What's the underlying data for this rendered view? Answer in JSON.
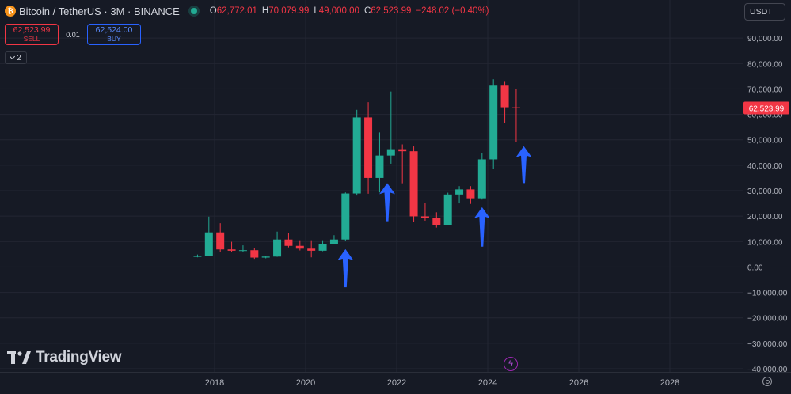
{
  "header": {
    "symbol": "Bitcoin / TetherUS · 3M · BINANCE",
    "coin_icon": "bitcoin-icon",
    "ohlc": [
      {
        "key": "O",
        "value": "62,772.01"
      },
      {
        "key": "H",
        "value": "70,079.99"
      },
      {
        "key": "L",
        "value": "49,000.00"
      },
      {
        "key": "C",
        "value": "62,523.99"
      }
    ],
    "change": "−248.02 (−0.40%)"
  },
  "trade": {
    "sell_price": "62,523.99",
    "sell_label": "SELL",
    "spread": "0.01",
    "buy_price": "62,524.00",
    "buy_label": "BUY"
  },
  "indicators_toggle": "2",
  "currency": "USDT",
  "branding": "TradingView",
  "colors": {
    "up": "#22ab94",
    "down": "#f23645",
    "arrow": "#2962ff",
    "background": "#161a25",
    "grid": "#232633",
    "price_line": "#f23645"
  },
  "chart_data": {
    "type": "candlestick",
    "title": "",
    "xlabel": "",
    "ylabel": "",
    "ylim": [
      -40000,
      100000
    ],
    "x_ticks": [
      "2018",
      "2020",
      "2022",
      "2024",
      "2026",
      "2028"
    ],
    "y_ticks": [
      "90,000.00",
      "80,000.00",
      "70,000.00",
      "60,000.00",
      "50,000.00",
      "40,000.00",
      "30,000.00",
      "20,000.00",
      "10,000.00",
      "0.00",
      "−10,000.00",
      "−20,000.00",
      "−30,000.00",
      "−40,000.00"
    ],
    "grid": true,
    "last_price": 62523.99,
    "last_price_label": "62,523.99",
    "candles": [
      {
        "t": "2017-07",
        "o": 4200,
        "h": 4900,
        "l": 3800,
        "c": 4300
      },
      {
        "t": "2017-10",
        "o": 4300,
        "h": 19800,
        "l": 4200,
        "c": 13600
      },
      {
        "t": "2018-01",
        "o": 13600,
        "h": 17200,
        "l": 6000,
        "c": 6900
      },
      {
        "t": "2018-04",
        "o": 6900,
        "h": 9900,
        "l": 5800,
        "c": 6400
      },
      {
        "t": "2018-07",
        "o": 6400,
        "h": 8500,
        "l": 5900,
        "c": 6600
      },
      {
        "t": "2018-10",
        "o": 6600,
        "h": 7500,
        "l": 3200,
        "c": 3700
      },
      {
        "t": "2019-01",
        "o": 3700,
        "h": 4300,
        "l": 3400,
        "c": 4100
      },
      {
        "t": "2019-04",
        "o": 4100,
        "h": 13900,
        "l": 4000,
        "c": 10800
      },
      {
        "t": "2019-07",
        "o": 10800,
        "h": 13200,
        "l": 7700,
        "c": 8300
      },
      {
        "t": "2019-10",
        "o": 8300,
        "h": 10500,
        "l": 6500,
        "c": 7200
      },
      {
        "t": "2020-01",
        "o": 7200,
        "h": 10500,
        "l": 3800,
        "c": 6400
      },
      {
        "t": "2020-04",
        "o": 6400,
        "h": 10500,
        "l": 6200,
        "c": 9100
      },
      {
        "t": "2020-07",
        "o": 9100,
        "h": 12500,
        "l": 8900,
        "c": 10800
      },
      {
        "t": "2020-10",
        "o": 10800,
        "h": 29300,
        "l": 10400,
        "c": 28900
      },
      {
        "t": "2021-01",
        "o": 28900,
        "h": 61800,
        "l": 28100,
        "c": 58800
      },
      {
        "t": "2021-04",
        "o": 58800,
        "h": 64800,
        "l": 28800,
        "c": 35000
      },
      {
        "t": "2021-07",
        "o": 35000,
        "h": 52900,
        "l": 29300,
        "c": 43800
      },
      {
        "t": "2021-10",
        "o": 43800,
        "h": 69000,
        "l": 40600,
        "c": 46300
      },
      {
        "t": "2022-01",
        "o": 46300,
        "h": 48200,
        "l": 32900,
        "c": 45500
      },
      {
        "t": "2022-04",
        "o": 45500,
        "h": 47400,
        "l": 17600,
        "c": 19900
      },
      {
        "t": "2022-07",
        "o": 19900,
        "h": 25200,
        "l": 18200,
        "c": 19400
      },
      {
        "t": "2022-10",
        "o": 19400,
        "h": 21500,
        "l": 15500,
        "c": 16500
      },
      {
        "t": "2023-01",
        "o": 16500,
        "h": 29200,
        "l": 16500,
        "c": 28500
      },
      {
        "t": "2023-04",
        "o": 28500,
        "h": 31800,
        "l": 25000,
        "c": 30500
      },
      {
        "t": "2023-07",
        "o": 30500,
        "h": 31800,
        "l": 24800,
        "c": 27000
      },
      {
        "t": "2023-10",
        "o": 27000,
        "h": 44700,
        "l": 26500,
        "c": 42300
      },
      {
        "t": "2024-01",
        "o": 42300,
        "h": 73800,
        "l": 38500,
        "c": 71300
      },
      {
        "t": "2024-04",
        "o": 71300,
        "h": 72800,
        "l": 56500,
        "c": 62800
      },
      {
        "t": "2024-07",
        "o": 62772.01,
        "h": 70079.99,
        "l": 49000,
        "c": 62523.99
      }
    ],
    "annotations": [
      {
        "type": "arrow-up",
        "t": "2020-10",
        "from": -8000,
        "to": 7000
      },
      {
        "type": "arrow-up",
        "t": "2021-09",
        "from": 18000,
        "to": 33000
      },
      {
        "type": "arrow-up",
        "t": "2023-10",
        "from": 8000,
        "to": 23500
      },
      {
        "type": "arrow-up",
        "t": "2024-09",
        "from": 33000,
        "to": 47500
      }
    ]
  }
}
